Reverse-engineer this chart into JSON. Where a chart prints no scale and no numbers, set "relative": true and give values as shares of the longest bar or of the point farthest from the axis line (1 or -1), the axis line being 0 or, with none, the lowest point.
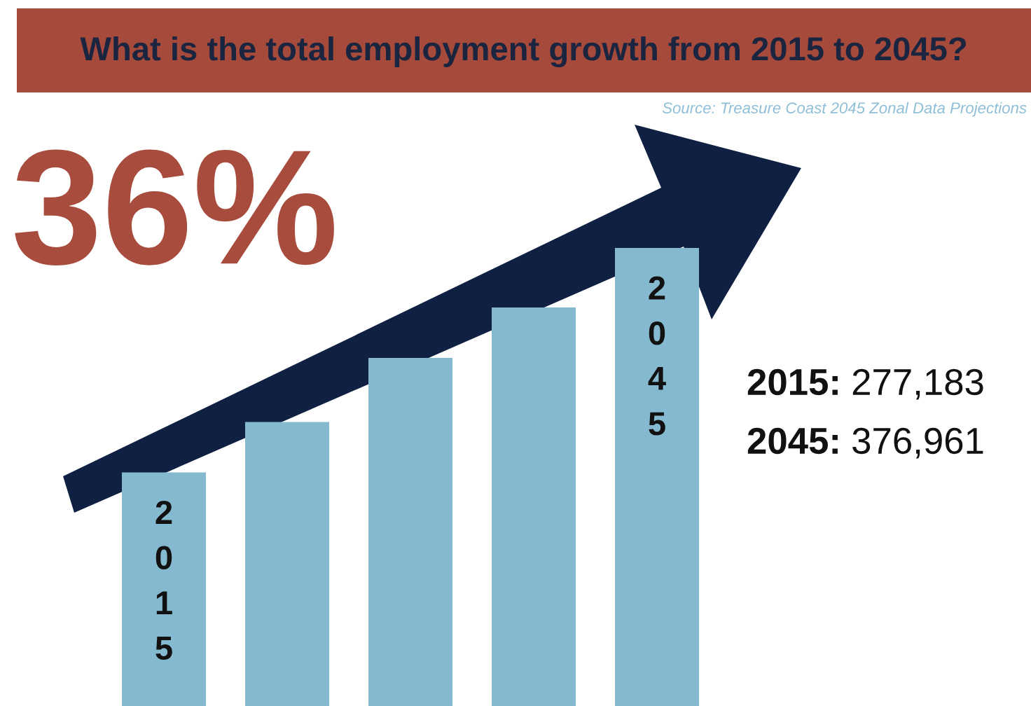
{
  "chart_data": {
    "type": "bar",
    "title": "What is the total employment growth from 2015 to 2045?",
    "categories": [
      "2015",
      null,
      null,
      null,
      "2045"
    ],
    "values": [
      0.51,
      0.62,
      0.76,
      0.87,
      1.0
    ],
    "color": "#85b9d0",
    "relative": true,
    "annotations": [
      "Source: Treasure Coast 2045 Zonal Data Projections",
      "36%",
      "2015: 277,183",
      "2045: 376,961"
    ]
  }
}
